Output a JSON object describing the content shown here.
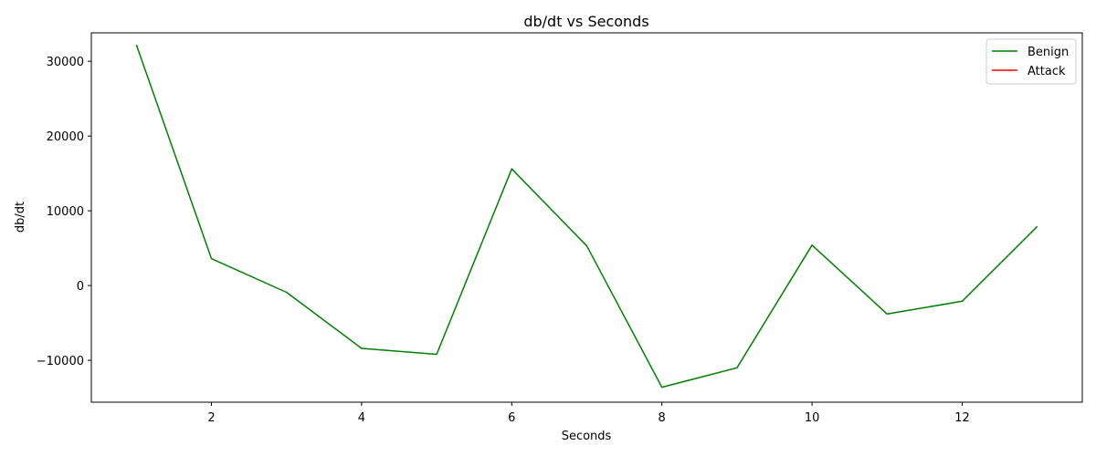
{
  "chart_data": {
    "type": "line",
    "title": "db/dt vs Seconds",
    "xlabel": "Seconds",
    "ylabel": "db/dt",
    "xlim": [
      0.4,
      13.6
    ],
    "ylim": [
      -15600,
      33800
    ],
    "x_ticks": [
      2,
      4,
      6,
      8,
      10,
      12
    ],
    "y_ticks": [
      -10000,
      0,
      10000,
      20000,
      30000
    ],
    "grid": false,
    "legend_position": "top-right",
    "series": [
      {
        "name": "Benign",
        "color": "#008000",
        "x": [
          1,
          2,
          3,
          4,
          5,
          6,
          7,
          8,
          9,
          10,
          11,
          12,
          13
        ],
        "y": [
          32200,
          3600,
          -900,
          -8400,
          -9200,
          15600,
          5300,
          -13600,
          -11000,
          5400,
          -3800,
          -2100,
          7900
        ]
      },
      {
        "name": "Attack",
        "color": "#ff0000",
        "x": [],
        "y": []
      }
    ]
  }
}
